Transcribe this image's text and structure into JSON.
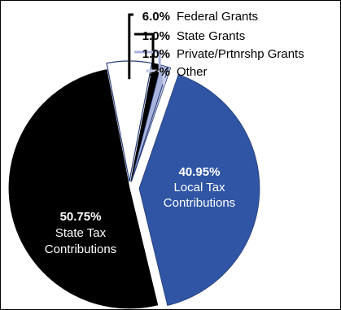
{
  "chart_data": {
    "type": "pie",
    "title": "",
    "slices": [
      {
        "label": "Local Tax Contributions",
        "label_lines": [
          "Local Tax",
          "Contributions"
        ],
        "value": 40.95,
        "value_text": "40.95%",
        "color": "#2f55a4",
        "exploded": true
      },
      {
        "label": "State Tax Contributions",
        "label_lines": [
          "State Tax",
          "Contributions"
        ],
        "value": 50.75,
        "value_text": "50.75%",
        "color": "#000000",
        "exploded": false
      },
      {
        "label": "Federal Grants",
        "value": 6.0,
        "value_text": "6.0%",
        "color": "#ffffff",
        "exploded": true
      },
      {
        "label": "State Grants",
        "value": 1.0,
        "value_text": "1.0%",
        "color": "#000000",
        "exploded": true
      },
      {
        "label": "Private/Prtnrshp Grants",
        "value": 1.0,
        "value_text": "1.0%",
        "color": "#a9b4dd",
        "exploded": true
      },
      {
        "label": "Other",
        "value": 0.3,
        "value_text": ".3%",
        "color": "#c9cfe9",
        "exploded": true
      }
    ],
    "legend_placement": "top-right",
    "grid": false
  }
}
